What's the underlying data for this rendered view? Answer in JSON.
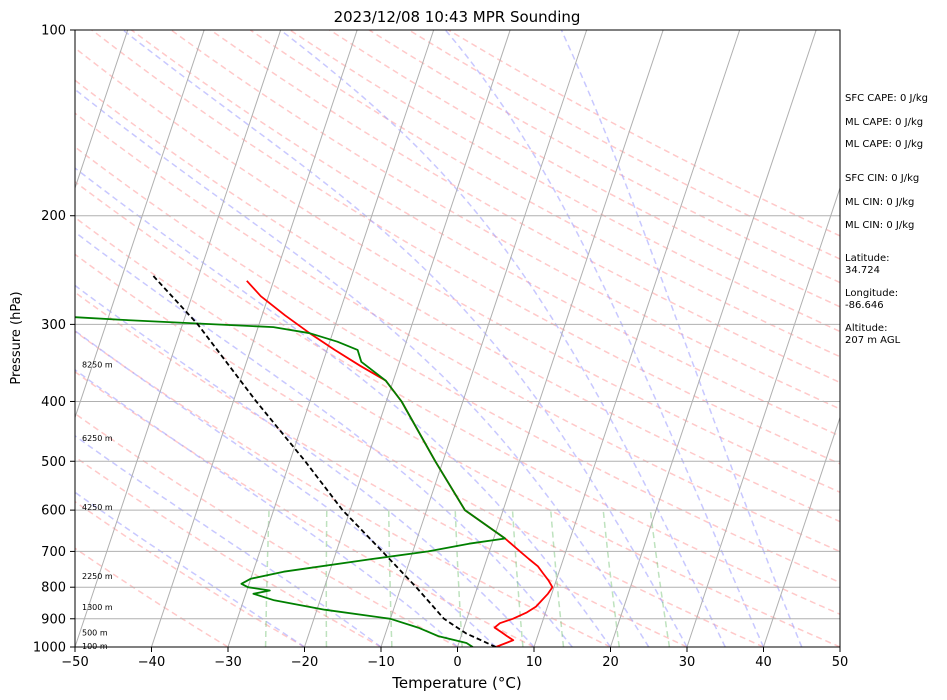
{
  "chart_data": {
    "type": "line",
    "title": "2023/12/08 10:43 MPR Sounding",
    "xlabel": "Temperature (°C)",
    "ylabel": "Pressure (hPa)",
    "xlim": [
      -50,
      50
    ],
    "ylim": [
      1000,
      100
    ],
    "y_scale": "log",
    "skew": true,
    "x_ticks": [
      "−50",
      "−40",
      "−30",
      "−20",
      "−10",
      "0",
      "10",
      "20",
      "30",
      "40",
      "50"
    ],
    "x_tick_values": [
      -50,
      -40,
      -30,
      -20,
      -10,
      0,
      10,
      20,
      30,
      40,
      50
    ],
    "y_ticks": [
      "100",
      "200",
      "300",
      "400",
      "500",
      "600",
      "700",
      "800",
      "900",
      "1000"
    ],
    "y_tick_values": [
      100,
      200,
      300,
      400,
      500,
      600,
      700,
      800,
      900,
      1000
    ],
    "grid": true,
    "series": [
      {
        "key": "temperature",
        "color": "#ff0000",
        "points": [
          [
            1000,
            5
          ],
          [
            975,
            7
          ],
          [
            960,
            6
          ],
          [
            945,
            5
          ],
          [
            930,
            4
          ],
          [
            915,
            4.5
          ],
          [
            900,
            6
          ],
          [
            880,
            7.5
          ],
          [
            860,
            8.5
          ],
          [
            840,
            9
          ],
          [
            820,
            9.5
          ],
          [
            800,
            9.8
          ],
          [
            780,
            9
          ],
          [
            760,
            8
          ],
          [
            740,
            7
          ],
          [
            720,
            5.5
          ],
          [
            700,
            4
          ],
          [
            680,
            2.5
          ],
          [
            667,
            1.5
          ],
          [
            600,
            -5
          ],
          [
            500,
            -11
          ],
          [
            400,
            -18
          ],
          [
            370,
            -21
          ],
          [
            350,
            -25
          ],
          [
            330,
            -29
          ],
          [
            310,
            -33
          ],
          [
            290,
            -37
          ],
          [
            270,
            -41
          ],
          [
            255,
            -43.5
          ]
        ]
      },
      {
        "key": "dewpoint",
        "color": "#008000",
        "points": [
          [
            1000,
            2
          ],
          [
            985,
            1
          ],
          [
            960,
            -3
          ],
          [
            930,
            -6
          ],
          [
            900,
            -10
          ],
          [
            870,
            -19
          ],
          [
            840,
            -26
          ],
          [
            820,
            -29
          ],
          [
            810,
            -27
          ],
          [
            800,
            -30
          ],
          [
            790,
            -31
          ],
          [
            775,
            -30
          ],
          [
            755,
            -26
          ],
          [
            720,
            -15
          ],
          [
            700,
            -8
          ],
          [
            680,
            -3
          ],
          [
            667,
            1.5
          ],
          [
            600,
            -5
          ],
          [
            500,
            -11
          ],
          [
            400,
            -18
          ],
          [
            370,
            -21
          ],
          [
            345,
            -25
          ],
          [
            330,
            -26
          ],
          [
            320,
            -29
          ],
          [
            310,
            -33
          ],
          [
            303,
            -38
          ],
          [
            295,
            -58
          ],
          [
            285,
            -80
          ]
        ]
      },
      {
        "key": "parcel",
        "color": "#000000",
        "points": [
          [
            1000,
            5
          ],
          [
            950,
            0.5
          ],
          [
            900,
            -3
          ],
          [
            800,
            -8
          ],
          [
            700,
            -14
          ],
          [
            600,
            -21
          ],
          [
            500,
            -28
          ],
          [
            400,
            -37
          ],
          [
            300,
            -48
          ],
          [
            250,
            -56
          ]
        ]
      }
    ],
    "height_labels": [
      {
        "text": "100 m",
        "p": 1000
      },
      {
        "text": "500 m",
        "p": 950
      },
      {
        "text": "1300 m",
        "p": 865
      },
      {
        "text": "2250 m",
        "p": 770
      },
      {
        "text": "4250 m",
        "p": 595
      },
      {
        "text": "6250 m",
        "p": 460
      },
      {
        "text": "8250 m",
        "p": 350
      }
    ],
    "annotations": [
      "SFC CAPE: 0 J/kg",
      "ML CAPE: 0 J/kg",
      "ML CAPE: 0 J/kg",
      "SFC CIN: 0 J/kg",
      "ML CIN: 0 J/kg",
      "ML CIN: 0 J/kg",
      "Latitude:",
      "34.724",
      "Longitude:",
      "-86.646",
      "Altitude:",
      "207 m AGL"
    ],
    "dry_adiabats_thetaC": [
      -30,
      -20,
      -10,
      0,
      10,
      20,
      30,
      40,
      50,
      60,
      70,
      80,
      90,
      100,
      110,
      120,
      130,
      140,
      150,
      160,
      170,
      180,
      190,
      200
    ],
    "moist_adiabats_startC": [
      -20,
      -10,
      0,
      5,
      10,
      15,
      20,
      25,
      30,
      35,
      40,
      45
    ],
    "mixing_ratio_gkg": [
      0.5,
      1,
      2,
      4,
      7,
      10,
      16,
      24
    ],
    "colors": {
      "isotherm": "#b0b0b0",
      "isobar": "#b0b0b0",
      "dry_adiabat": "#ff9d9d",
      "moist_adiabat": "#a3a3ff",
      "mixing_ratio": "#6fbf6f"
    }
  }
}
